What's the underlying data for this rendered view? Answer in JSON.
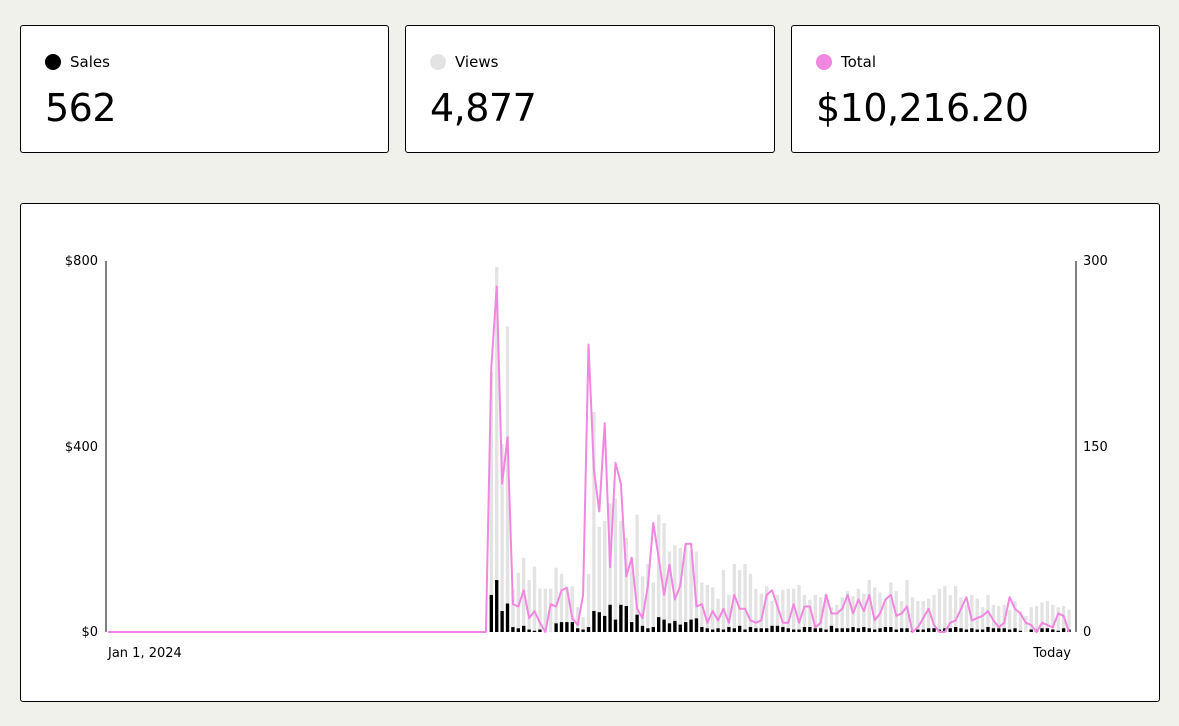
{
  "colors": {
    "sales": "#000000",
    "views": "#e3e3e3",
    "total": "#f187e0"
  },
  "stats": [
    {
      "id": "sales",
      "label": "Sales",
      "value": "562"
    },
    {
      "id": "views",
      "label": "Views",
      "value": "4,877"
    },
    {
      "id": "total",
      "label": "Total",
      "value": "$10,216.20"
    }
  ],
  "chart_data": {
    "type": "bar",
    "grid": false,
    "y_left": {
      "ticks": [
        "$800",
        "$400",
        "$0"
      ],
      "range": [
        0,
        800
      ]
    },
    "y_right": {
      "ticks": [
        "300",
        "150",
        "0"
      ],
      "range": [
        0,
        300
      ]
    },
    "x_labels": {
      "start": "Jan 1, 2024",
      "end": "Today"
    },
    "series": [
      {
        "name": "Sales",
        "kind": "bar",
        "axis": "right",
        "color": "#000000",
        "values": [
          0,
          0,
          0,
          0,
          0,
          0,
          0,
          0,
          0,
          0,
          0,
          0,
          0,
          0,
          0,
          0,
          0,
          0,
          0,
          0,
          0,
          0,
          0,
          0,
          0,
          0,
          0,
          0,
          0,
          0,
          0,
          0,
          0,
          0,
          0,
          0,
          0,
          0,
          0,
          0,
          0,
          0,
          0,
          0,
          0,
          0,
          0,
          0,
          0,
          0,
          0,
          0,
          0,
          0,
          0,
          0,
          0,
          0,
          0,
          0,
          0,
          0,
          0,
          0,
          0,
          0,
          0,
          0,
          0,
          0,
          0,
          30,
          42,
          17,
          23,
          4,
          3,
          5,
          2,
          1,
          2,
          0,
          0,
          7,
          8,
          8,
          8,
          3,
          2,
          4,
          17,
          16,
          13,
          22,
          10,
          22,
          21,
          8,
          14,
          5,
          3,
          4,
          12,
          10,
          7,
          9,
          6,
          8,
          10,
          11,
          4,
          3,
          2,
          3,
          2,
          4,
          3,
          5,
          2,
          4,
          3,
          3,
          3,
          5,
          5,
          4,
          3,
          2,
          2,
          4,
          4,
          3,
          3,
          2,
          5,
          3,
          3,
          3,
          4,
          3,
          4,
          3,
          2,
          3,
          4,
          4,
          2,
          3,
          3,
          1,
          2,
          2,
          3,
          3,
          2,
          3,
          3,
          4,
          3,
          2,
          3,
          2,
          2,
          4,
          3,
          3,
          3,
          2,
          3,
          1,
          0,
          2,
          2,
          3,
          3,
          2,
          1,
          3,
          2
        ]
      },
      {
        "name": "Views",
        "kind": "bar",
        "axis": "right",
        "color": "#e3e3e3",
        "values": [
          0,
          0,
          0,
          0,
          0,
          0,
          0,
          0,
          0,
          0,
          0,
          0,
          0,
          0,
          0,
          0,
          0,
          0,
          0,
          0,
          0,
          0,
          0,
          0,
          0,
          0,
          0,
          0,
          0,
          0,
          0,
          0,
          0,
          0,
          0,
          0,
          0,
          0,
          0,
          0,
          0,
          0,
          0,
          0,
          0,
          0,
          0,
          0,
          0,
          0,
          0,
          0,
          0,
          0,
          0,
          0,
          0,
          0,
          0,
          0,
          0,
          0,
          0,
          0,
          0,
          0,
          0,
          0,
          0,
          0,
          0,
          210,
          295,
          152,
          247,
          35,
          48,
          60,
          42,
          53,
          35,
          35,
          35,
          52,
          47,
          37,
          37,
          20,
          12,
          47,
          178,
          85,
          90,
          104,
          108,
          90,
          76,
          60,
          95,
          45,
          55,
          40,
          95,
          88,
          65,
          70,
          68,
          70,
          66,
          65,
          40,
          38,
          36,
          27,
          50,
          30,
          55,
          50,
          55,
          47,
          35,
          31,
          37,
          25,
          30,
          34,
          35,
          35,
          38,
          30,
          26,
          30,
          28,
          31,
          20,
          22,
          28,
          33,
          29,
          35,
          31,
          42,
          36,
          32,
          26,
          40,
          33,
          25,
          42,
          28,
          25,
          25,
          27,
          30,
          35,
          37,
          30,
          37,
          28,
          22,
          30,
          27,
          20,
          30,
          22,
          21,
          22,
          18,
          25,
          17,
          13,
          20,
          21,
          24,
          25,
          22,
          20,
          21,
          18
        ]
      },
      {
        "name": "Total",
        "kind": "line",
        "axis": "left",
        "color": "#f187e0",
        "values": [
          0,
          0,
          0,
          0,
          0,
          0,
          0,
          0,
          0,
          0,
          0,
          0,
          0,
          0,
          0,
          0,
          0,
          0,
          0,
          0,
          0,
          0,
          0,
          0,
          0,
          0,
          0,
          0,
          0,
          0,
          0,
          0,
          0,
          0,
          0,
          0,
          0,
          0,
          0,
          0,
          0,
          0,
          0,
          0,
          0,
          0,
          0,
          0,
          0,
          0,
          0,
          0,
          0,
          0,
          0,
          0,
          0,
          0,
          0,
          0,
          0,
          0,
          0,
          0,
          0,
          0,
          0,
          0,
          0,
          0,
          0,
          570,
          745,
          320,
          420,
          60,
          55,
          90,
          30,
          45,
          20,
          0,
          60,
          55,
          90,
          95,
          30,
          15,
          80,
          620,
          350,
          260,
          450,
          140,
          365,
          320,
          120,
          160,
          50,
          30,
          100,
          235,
          160,
          80,
          145,
          70,
          100,
          190,
          190,
          55,
          60,
          20,
          45,
          25,
          50,
          20,
          80,
          50,
          50,
          25,
          20,
          25,
          80,
          90,
          55,
          20,
          20,
          60,
          20,
          55,
          55,
          10,
          20,
          80,
          40,
          40,
          50,
          80,
          40,
          70,
          45,
          80,
          25,
          40,
          70,
          80,
          35,
          40,
          55,
          0,
          10,
          30,
          50,
          15,
          0,
          0,
          20,
          25,
          50,
          75,
          25,
          30,
          35,
          45,
          25,
          10,
          20,
          75,
          50,
          40,
          20,
          15,
          0,
          20,
          15,
          10,
          40,
          35,
          0
        ]
      }
    ]
  }
}
